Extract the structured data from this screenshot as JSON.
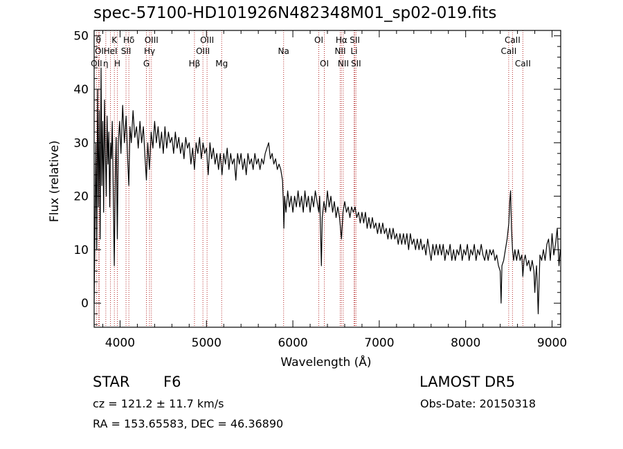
{
  "chart_title": "spec-57100-HD101926N482348M01_sp02-019.fits",
  "info": {
    "class": "STAR",
    "subclass": "F6",
    "survey": "LAMOST  DR5",
    "cz": "cz = 121.2 ± 11.7 km/s",
    "obs_date": "Obs-Date: 20150318",
    "ra_dec": "RA = 153.65583, DEC =  46.36890"
  },
  "colors": {
    "line_marker": "#b22222",
    "spectrum": "#000000"
  },
  "chart_data": {
    "type": "line",
    "xlabel": "Wavelength (Å)",
    "ylabel": "Flux (relative)",
    "xlim": [
      3700,
      9100
    ],
    "ylim": [
      -4.5,
      51
    ],
    "xticks": [
      4000,
      5000,
      6000,
      7000,
      8000,
      9000
    ],
    "yticks": [
      0,
      10,
      20,
      30,
      40,
      50
    ],
    "grid": false,
    "spectrum": [
      [
        3700,
        0
      ],
      [
        3710,
        14
      ],
      [
        3720,
        30
      ],
      [
        3730,
        10
      ],
      [
        3740,
        40
      ],
      [
        3750,
        18
      ],
      [
        3760,
        36
      ],
      [
        3770,
        12
      ],
      [
        3780,
        44
      ],
      [
        3790,
        22
      ],
      [
        3800,
        34
      ],
      [
        3810,
        17
      ],
      [
        3820,
        38
      ],
      [
        3830,
        28
      ],
      [
        3840,
        20
      ],
      [
        3850,
        35
      ],
      [
        3860,
        26
      ],
      [
        3870,
        32
      ],
      [
        3880,
        18
      ],
      [
        3890,
        30
      ],
      [
        3900,
        27
      ],
      [
        3910,
        34
      ],
      [
        3920,
        22
      ],
      [
        3933,
        7
      ],
      [
        3945,
        24
      ],
      [
        3955,
        31
      ],
      [
        3968,
        12
      ],
      [
        3980,
        30
      ],
      [
        3995,
        34
      ],
      [
        4010,
        28
      ],
      [
        4030,
        37
      ],
      [
        4050,
        30
      ],
      [
        4070,
        35
      ],
      [
        4090,
        26
      ],
      [
        4101,
        22
      ],
      [
        4115,
        33
      ],
      [
        4130,
        30
      ],
      [
        4150,
        36
      ],
      [
        4170,
        31
      ],
      [
        4190,
        33
      ],
      [
        4210,
        29
      ],
      [
        4230,
        34
      ],
      [
        4250,
        30
      ],
      [
        4270,
        33
      ],
      [
        4290,
        27
      ],
      [
        4305,
        23
      ],
      [
        4320,
        30
      ],
      [
        4340,
        25
      ],
      [
        4360,
        32
      ],
      [
        4380,
        29
      ],
      [
        4400,
        34
      ],
      [
        4420,
        30
      ],
      [
        4440,
        33
      ],
      [
        4460,
        29
      ],
      [
        4480,
        32
      ],
      [
        4500,
        28
      ],
      [
        4520,
        33
      ],
      [
        4540,
        29
      ],
      [
        4560,
        32
      ],
      [
        4580,
        30
      ],
      [
        4600,
        31
      ],
      [
        4620,
        28
      ],
      [
        4640,
        32
      ],
      [
        4660,
        29
      ],
      [
        4680,
        31
      ],
      [
        4700,
        28
      ],
      [
        4720,
        30
      ],
      [
        4740,
        27
      ],
      [
        4760,
        31
      ],
      [
        4780,
        29
      ],
      [
        4800,
        30
      ],
      [
        4820,
        26
      ],
      [
        4840,
        29
      ],
      [
        4861,
        25
      ],
      [
        4880,
        30
      ],
      [
        4900,
        28
      ],
      [
        4920,
        31
      ],
      [
        4940,
        27
      ],
      [
        4960,
        30
      ],
      [
        4980,
        28
      ],
      [
        5000,
        29
      ],
      [
        5020,
        24
      ],
      [
        5040,
        30
      ],
      [
        5060,
        27
      ],
      [
        5080,
        29
      ],
      [
        5100,
        26
      ],
      [
        5120,
        28
      ],
      [
        5140,
        25
      ],
      [
        5160,
        28
      ],
      [
        5180,
        24
      ],
      [
        5200,
        28
      ],
      [
        5220,
        26
      ],
      [
        5240,
        29
      ],
      [
        5260,
        25
      ],
      [
        5280,
        28
      ],
      [
        5300,
        26
      ],
      [
        5320,
        27
      ],
      [
        5340,
        23
      ],
      [
        5360,
        28
      ],
      [
        5380,
        26
      ],
      [
        5400,
        28
      ],
      [
        5420,
        25
      ],
      [
        5440,
        27
      ],
      [
        5460,
        24
      ],
      [
        5480,
        28
      ],
      [
        5500,
        26
      ],
      [
        5520,
        27
      ],
      [
        5540,
        25
      ],
      [
        5560,
        28
      ],
      [
        5580,
        26
      ],
      [
        5600,
        27
      ],
      [
        5620,
        25
      ],
      [
        5640,
        27
      ],
      [
        5660,
        26
      ],
      [
        5680,
        28
      ],
      [
        5700,
        29
      ],
      [
        5720,
        30
      ],
      [
        5740,
        27
      ],
      [
        5760,
        28
      ],
      [
        5780,
        26
      ],
      [
        5800,
        27
      ],
      [
        5820,
        25
      ],
      [
        5840,
        26
      ],
      [
        5860,
        25
      ],
      [
        5880,
        23
      ],
      [
        5890,
        19
      ],
      [
        5896,
        14
      ],
      [
        5905,
        20
      ],
      [
        5920,
        17
      ],
      [
        5940,
        21
      ],
      [
        5960,
        18
      ],
      [
        5980,
        20
      ],
      [
        6000,
        17
      ],
      [
        6020,
        20
      ],
      [
        6040,
        18
      ],
      [
        6060,
        21
      ],
      [
        6080,
        18
      ],
      [
        6100,
        20
      ],
      [
        6120,
        17
      ],
      [
        6140,
        21
      ],
      [
        6160,
        18
      ],
      [
        6180,
        20
      ],
      [
        6200,
        17
      ],
      [
        6220,
        20
      ],
      [
        6240,
        18
      ],
      [
        6260,
        21
      ],
      [
        6280,
        19
      ],
      [
        6300,
        17
      ],
      [
        6310,
        20
      ],
      [
        6320,
        14
      ],
      [
        6330,
        7
      ],
      [
        6340,
        16
      ],
      [
        6360,
        19
      ],
      [
        6380,
        17
      ],
      [
        6400,
        21
      ],
      [
        6420,
        18
      ],
      [
        6440,
        20
      ],
      [
        6460,
        17
      ],
      [
        6480,
        19
      ],
      [
        6500,
        16
      ],
      [
        6520,
        18
      ],
      [
        6540,
        16
      ],
      [
        6563,
        12
      ],
      [
        6580,
        17
      ],
      [
        6600,
        19
      ],
      [
        6620,
        17
      ],
      [
        6640,
        18
      ],
      [
        6660,
        16
      ],
      [
        6680,
        18
      ],
      [
        6700,
        17
      ],
      [
        6720,
        18
      ],
      [
        6740,
        16
      ],
      [
        6760,
        17
      ],
      [
        6780,
        15
      ],
      [
        6800,
        17
      ],
      [
        6820,
        15
      ],
      [
        6840,
        17
      ],
      [
        6860,
        14
      ],
      [
        6880,
        16
      ],
      [
        6900,
        14
      ],
      [
        6920,
        16
      ],
      [
        6940,
        14
      ],
      [
        6960,
        15
      ],
      [
        6980,
        13
      ],
      [
        7000,
        15
      ],
      [
        7020,
        13
      ],
      [
        7040,
        15
      ],
      [
        7060,
        13
      ],
      [
        7080,
        14
      ],
      [
        7100,
        12
      ],
      [
        7120,
        14
      ],
      [
        7140,
        12
      ],
      [
        7160,
        14
      ],
      [
        7180,
        12
      ],
      [
        7200,
        13
      ],
      [
        7220,
        11
      ],
      [
        7240,
        13
      ],
      [
        7260,
        11
      ],
      [
        7280,
        13
      ],
      [
        7300,
        11
      ],
      [
        7320,
        13
      ],
      [
        7340,
        10
      ],
      [
        7360,
        13
      ],
      [
        7380,
        11
      ],
      [
        7400,
        12
      ],
      [
        7420,
        10
      ],
      [
        7440,
        12
      ],
      [
        7460,
        10
      ],
      [
        7480,
        12
      ],
      [
        7500,
        10
      ],
      [
        7520,
        11
      ],
      [
        7540,
        9
      ],
      [
        7560,
        12
      ],
      [
        7580,
        10
      ],
      [
        7600,
        8
      ],
      [
        7620,
        11
      ],
      [
        7640,
        9
      ],
      [
        7660,
        11
      ],
      [
        7680,
        9
      ],
      [
        7700,
        11
      ],
      [
        7720,
        9
      ],
      [
        7740,
        11
      ],
      [
        7760,
        8
      ],
      [
        7780,
        10
      ],
      [
        7800,
        9
      ],
      [
        7820,
        11
      ],
      [
        7840,
        8
      ],
      [
        7860,
        10
      ],
      [
        7880,
        8
      ],
      [
        7900,
        10
      ],
      [
        7920,
        9
      ],
      [
        7940,
        11
      ],
      [
        7960,
        8
      ],
      [
        7980,
        10
      ],
      [
        8000,
        9
      ],
      [
        8020,
        11
      ],
      [
        8040,
        8
      ],
      [
        8060,
        10
      ],
      [
        8080,
        9
      ],
      [
        8100,
        11
      ],
      [
        8120,
        8
      ],
      [
        8140,
        10
      ],
      [
        8160,
        9
      ],
      [
        8180,
        11
      ],
      [
        8200,
        9
      ],
      [
        8220,
        8
      ],
      [
        8240,
        10
      ],
      [
        8260,
        8
      ],
      [
        8280,
        10
      ],
      [
        8300,
        9
      ],
      [
        8320,
        10
      ],
      [
        8340,
        8
      ],
      [
        8360,
        9
      ],
      [
        8380,
        7
      ],
      [
        8400,
        6
      ],
      [
        8410,
        0
      ],
      [
        8420,
        7
      ],
      [
        8440,
        8
      ],
      [
        8460,
        10
      ],
      [
        8480,
        12
      ],
      [
        8500,
        15
      ],
      [
        8510,
        19
      ],
      [
        8520,
        21
      ],
      [
        8530,
        14
      ],
      [
        8542,
        10
      ],
      [
        8555,
        8
      ],
      [
        8570,
        10
      ],
      [
        8590,
        8
      ],
      [
        8610,
        10
      ],
      [
        8630,
        8
      ],
      [
        8650,
        9
      ],
      [
        8662,
        5
      ],
      [
        8675,
        8
      ],
      [
        8690,
        9
      ],
      [
        8710,
        7
      ],
      [
        8730,
        8
      ],
      [
        8750,
        6
      ],
      [
        8770,
        8
      ],
      [
        8790,
        6
      ],
      [
        8800,
        2
      ],
      [
        8810,
        5
      ],
      [
        8820,
        7
      ],
      [
        8830,
        3
      ],
      [
        8840,
        -2
      ],
      [
        8850,
        4
      ],
      [
        8860,
        9
      ],
      [
        8880,
        8
      ],
      [
        8900,
        10
      ],
      [
        8920,
        8
      ],
      [
        8940,
        11
      ],
      [
        8960,
        12
      ],
      [
        8980,
        8
      ],
      [
        9000,
        13
      ],
      [
        9020,
        9
      ],
      [
        9040,
        11
      ],
      [
        9060,
        14
      ],
      [
        9080,
        7
      ],
      [
        9095,
        10
      ]
    ],
    "lines": [
      {
        "label": "OII",
        "wl": 3727,
        "row": 3
      },
      {
        "label": "θ",
        "wl": 3750,
        "row": 1
      },
      {
        "label": "OI",
        "wl": 3760,
        "row": 2
      },
      {
        "label": "η",
        "wl": 3835,
        "row": 3
      },
      {
        "label": "HeI",
        "wl": 3889,
        "row": 2
      },
      {
        "label": "K",
        "wl": 3934,
        "row": 1
      },
      {
        "label": "H",
        "wl": 3969,
        "row": 3
      },
      {
        "label": "SII",
        "wl": 4069,
        "row": 2
      },
      {
        "label": "Hδ",
        "wl": 4102,
        "row": 1
      },
      {
        "label": "OIII",
        "wl": 4363,
        "row": 1
      },
      {
        "label": "Hγ",
        "wl": 4341,
        "row": 2
      },
      {
        "label": "G",
        "wl": 4305,
        "row": 3
      },
      {
        "label": "Hβ",
        "wl": 4861,
        "row": 3
      },
      {
        "label": "OIII",
        "wl": 4959,
        "row": 2
      },
      {
        "label": "OIII",
        "wl": 5007,
        "row": 1
      },
      {
        "label": "Mg",
        "wl": 5176,
        "row": 3
      },
      {
        "label": "Na",
        "wl": 5893,
        "row": 2
      },
      {
        "label": "OI",
        "wl": 6300,
        "row": 1
      },
      {
        "label": "OI",
        "wl": 6364,
        "row": 3
      },
      {
        "label": "NII",
        "wl": 6548,
        "row": 2
      },
      {
        "label": "Hα",
        "wl": 6563,
        "row": 1
      },
      {
        "label": "NII",
        "wl": 6584,
        "row": 3
      },
      {
        "label": "SII",
        "wl": 6717,
        "row": 1
      },
      {
        "label": "Li",
        "wl": 6708,
        "row": 2
      },
      {
        "label": "SII",
        "wl": 6731,
        "row": 3
      },
      {
        "label": "CaII",
        "wl": 8498,
        "row": 2
      },
      {
        "label": "CaII",
        "wl": 8542,
        "row": 1
      },
      {
        "label": "CaII",
        "wl": 8662,
        "row": 3
      }
    ]
  }
}
